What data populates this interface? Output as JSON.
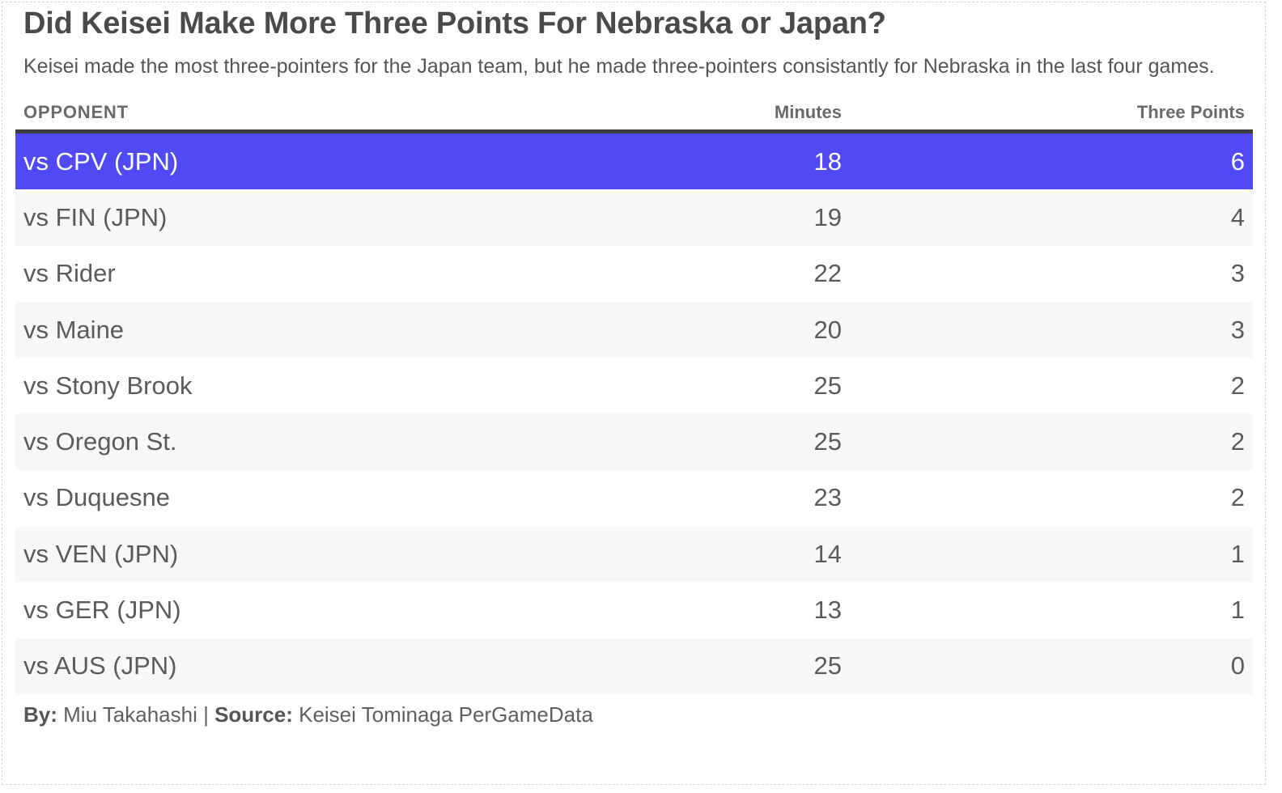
{
  "title": "Did Keisei Make More Three Points For Nebraska or Japan?",
  "subtitle": "Keisei made the most three-pointers for the Japan team, but he made three-pointers consistantly for Nebraska in the last four games.",
  "columns": {
    "opponent": "OPPONENT",
    "minutes": "Minutes",
    "three_points": "Three Points"
  },
  "colors": {
    "highlight": "#4f4af3",
    "header_rule": "#3d3d3d",
    "row_alt": "#f8f8f8"
  },
  "footer": {
    "by_label": "By:",
    "by_value": " Miu Takahashi | ",
    "source_label": "Source:",
    "source_value": " Keisei Tominaga PerGameData"
  },
  "chart_data": {
    "type": "table",
    "title": "Did Keisei Make More Three Points For Nebraska or Japan?",
    "columns": [
      "OPPONENT",
      "Minutes",
      "Three Points"
    ],
    "highlighted_row": 0,
    "rows": [
      {
        "opponent": "vs CPV (JPN)",
        "minutes": "18",
        "three_points": "6"
      },
      {
        "opponent": "vs FIN (JPN)",
        "minutes": "19",
        "three_points": "4"
      },
      {
        "opponent": "vs Rider",
        "minutes": "22",
        "three_points": "3"
      },
      {
        "opponent": "vs Maine",
        "minutes": "20",
        "three_points": "3"
      },
      {
        "opponent": "vs Stony Brook",
        "minutes": "25",
        "three_points": "2"
      },
      {
        "opponent": "vs Oregon St.",
        "minutes": "25",
        "three_points": "2"
      },
      {
        "opponent": "vs Duquesne",
        "minutes": "23",
        "three_points": "2"
      },
      {
        "opponent": "vs VEN (JPN)",
        "minutes": "14",
        "three_points": "1"
      },
      {
        "opponent": "vs GER (JPN)",
        "minutes": "13",
        "three_points": "1"
      },
      {
        "opponent": "vs AUS (JPN)",
        "minutes": "25",
        "three_points": "0"
      }
    ]
  }
}
